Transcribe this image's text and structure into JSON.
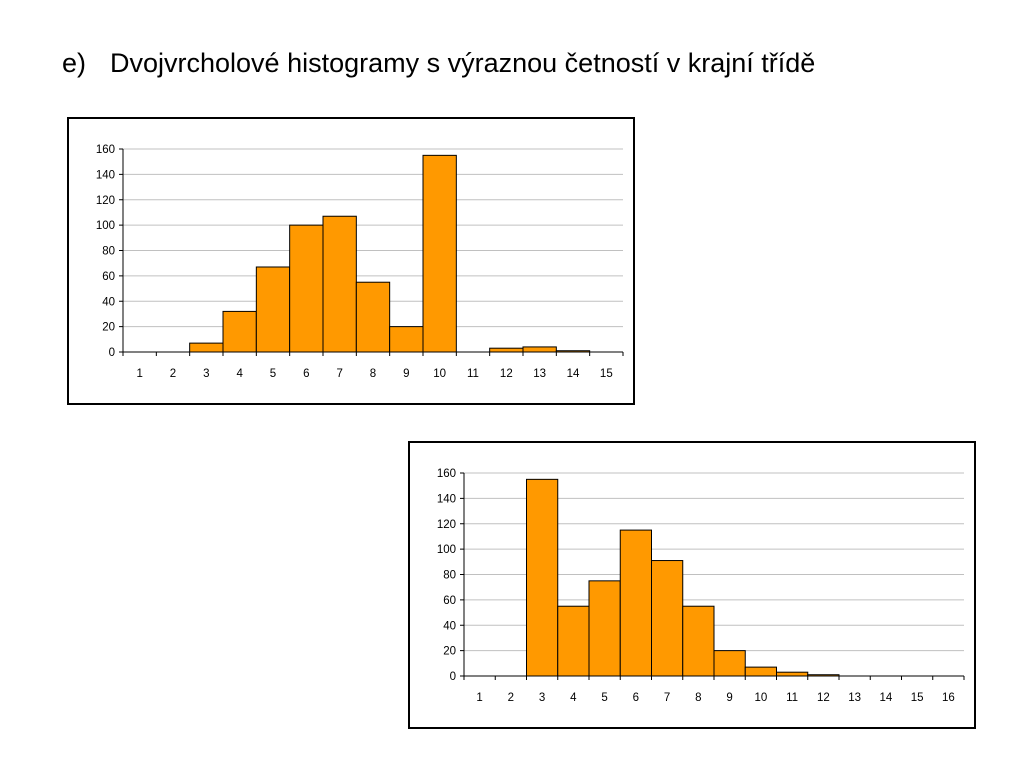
{
  "header": {
    "marker": "e)",
    "title": "Dvojvrcholové histogramy s výraznou četností v krajní třídě"
  },
  "colors": {
    "bar_fill": "#FF9900",
    "bar_stroke": "#000000",
    "grid": "#C0C0C0",
    "axis": "#000000"
  },
  "chart_data": [
    {
      "type": "bar",
      "title": "",
      "xlabel": "",
      "ylabel": "",
      "categories": [
        "1",
        "2",
        "3",
        "4",
        "5",
        "6",
        "7",
        "8",
        "9",
        "10",
        "11",
        "12",
        "13",
        "14",
        "15"
      ],
      "values": [
        0,
        0,
        7,
        32,
        67,
        100,
        107,
        55,
        20,
        155,
        0,
        3,
        4,
        1,
        0
      ],
      "ylim": [
        0,
        160
      ],
      "yticks": [
        0,
        20,
        40,
        60,
        80,
        100,
        120,
        140,
        160
      ],
      "grid": true,
      "legend": "none"
    },
    {
      "type": "bar",
      "title": "",
      "xlabel": "",
      "ylabel": "",
      "categories": [
        "1",
        "2",
        "3",
        "4",
        "5",
        "6",
        "7",
        "8",
        "9",
        "10",
        "11",
        "12",
        "13",
        "14",
        "15",
        "16"
      ],
      "values": [
        0,
        0,
        155,
        55,
        75,
        115,
        91,
        55,
        20,
        7,
        3,
        1,
        0,
        0,
        0,
        0
      ],
      "ylim": [
        0,
        160
      ],
      "yticks": [
        0,
        20,
        40,
        60,
        80,
        100,
        120,
        140,
        160
      ],
      "grid": true,
      "legend": "none"
    }
  ]
}
